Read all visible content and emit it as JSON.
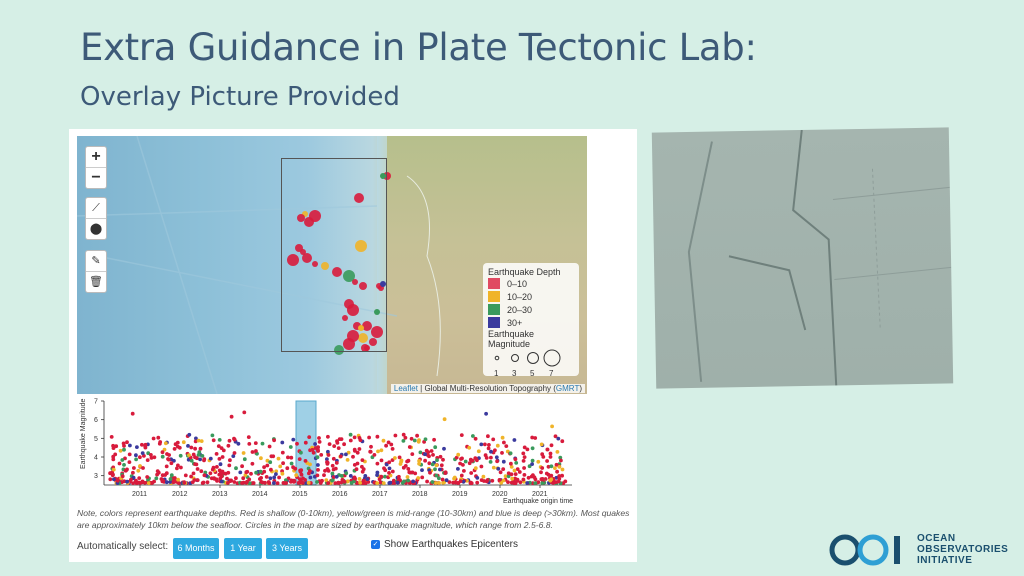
{
  "slide": {
    "title": "Extra Guidance in Plate Tectonic Lab:",
    "subtitle": "Overlay Picture Provided"
  },
  "map": {
    "zoom_in": "+",
    "zoom_out": "−",
    "attribution_link": "Leaflet",
    "attribution_text": " | Global Multi-Resolution Topography (",
    "attribution_gmrt": "GMRT",
    "attribution_close": ")"
  },
  "legend": {
    "depth_title": "Earthquake Depth",
    "depth_items": [
      {
        "label": "0–10",
        "color": "#e04a62"
      },
      {
        "label": "10–20",
        "color": "#f0b429"
      },
      {
        "label": "20–30",
        "color": "#3a9a5c"
      },
      {
        "label": "30+",
        "color": "#3b3a9e"
      }
    ],
    "magnitude_title": "Earthquake Magnitude",
    "magnitude_labels": [
      "1",
      "3",
      "5",
      "7"
    ]
  },
  "chart_data": {
    "type": "scatter",
    "ylabel": "Earthquake Magnitude",
    "xlabel": "Earthquake origin time",
    "ylim": [
      2.5,
      7
    ],
    "yticks": [
      "7",
      "6",
      "5",
      "4",
      "3"
    ],
    "xticks": [
      "2011",
      "2012",
      "2013",
      "2014",
      "2015",
      "2016",
      "2017",
      "2018",
      "2019",
      "2020",
      "2021"
    ],
    "xlim": [
      2010.1,
      2021.8
    ],
    "highlight_range": [
      2014.9,
      2015.4
    ],
    "series_colors": {
      "shallow": "#d81b3c",
      "mid_yellow": "#f0b429",
      "mid_green": "#3a9a5c",
      "deep": "#3b3a9e"
    }
  },
  "note": "Note, colors represent earthquake depths. Red is shallow (0-10km), yellow/green is mid-range (10-30km) and blue is deep (>30km). Most quakes are approximately 10km below the seafloor. Circles in the map are sized by earthquake magnitude, which range from 2.5-6.8.",
  "controls": {
    "auto_select_label": "Automatically select:",
    "btn_6m": "6 Months",
    "btn_1y": "1 Year",
    "btn_3y": "3 Years",
    "show_epicenters": "Show Earthquakes Epicenters"
  },
  "logo": {
    "line1": "OCEAN",
    "line2": "OBSERVATORIES",
    "line3": "INITIATIVE",
    "color": "#1a4f6e"
  }
}
